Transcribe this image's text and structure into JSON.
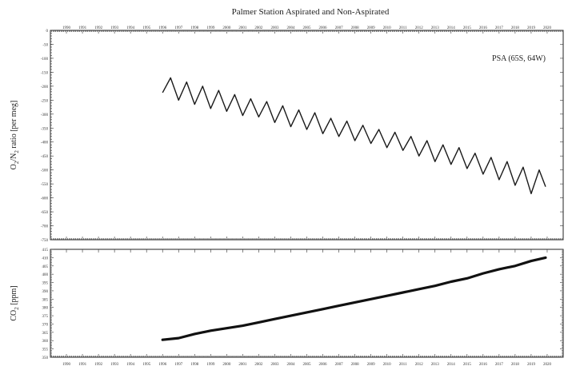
{
  "chart_data": [
    {
      "type": "line",
      "title": "Palmer Station Aspirated and Non-Aspirated",
      "ylabel": "O2/N2 ratio [per meg]",
      "ylabel_main": "O",
      "ylabel_sub1": "2",
      "ylabel_mid": "/N",
      "ylabel_sub2": "2",
      "ylabel_rest": " ratio [per meg]",
      "annotation": "PSA (65S, 64W)",
      "xlim": [
        1989,
        2021
      ],
      "ylim": [
        -750,
        0
      ],
      "x_ticks": [
        1990,
        1991,
        1992,
        1993,
        1994,
        1995,
        1996,
        1997,
        1998,
        1999,
        2000,
        2001,
        2002,
        2003,
        2004,
        2005,
        2006,
        2007,
        2008,
        2009,
        2010,
        2011,
        2012,
        2013,
        2014,
        2015,
        2016,
        2017,
        2018,
        2019,
        2020
      ],
      "y_ticks": [
        0,
        -50,
        -100,
        -150,
        -200,
        -250,
        -300,
        -350,
        -400,
        -450,
        -500,
        -550,
        -600,
        -650,
        -700,
        -750
      ],
      "series": [
        {
          "x": [
            1996.0,
            1996.5,
            1997.0,
            1997.5,
            1998.0,
            1998.5,
            1999.0,
            1999.5,
            2000.0,
            2000.5,
            2001.0,
            2001.5,
            2002.0,
            2002.5,
            2003.0,
            2003.5,
            2004.0,
            2004.5,
            2005.0,
            2005.5,
            2006.0,
            2006.5,
            2007.0,
            2007.5,
            2008.0,
            2008.5,
            2009.0,
            2009.5,
            2010.0,
            2010.5,
            2011.0,
            2011.5,
            2012.0,
            2012.5,
            2013.0,
            2013.5,
            2014.0,
            2014.5,
            2015.0,
            2015.5,
            2016.0,
            2016.5,
            2017.0,
            2017.5,
            2018.0,
            2018.5,
            2019.0,
            2019.5,
            2019.9
          ],
          "y": [
            -223,
            -170,
            -250,
            -185,
            -265,
            -200,
            -280,
            -215,
            -290,
            -230,
            -305,
            -245,
            -310,
            -255,
            -330,
            -270,
            -345,
            -285,
            -355,
            -295,
            -370,
            -315,
            -380,
            -325,
            -395,
            -340,
            -405,
            -355,
            -420,
            -365,
            -430,
            -380,
            -450,
            -395,
            -470,
            -410,
            -480,
            -420,
            -495,
            -440,
            -515,
            -455,
            -535,
            -470,
            -555,
            -490,
            -585,
            -500,
            -560
          ]
        }
      ]
    },
    {
      "type": "line",
      "ylabel": "CO2 [ppm]",
      "ylabel_main": "CO",
      "ylabel_sub1": "2",
      "ylabel_rest": " [ppm]",
      "xlim": [
        1989,
        2021
      ],
      "ylim": [
        350,
        415
      ],
      "x_ticks": [
        1990,
        1991,
        1992,
        1993,
        1994,
        1995,
        1996,
        1997,
        1998,
        1999,
        2000,
        2001,
        2002,
        2003,
        2004,
        2005,
        2006,
        2007,
        2008,
        2009,
        2010,
        2011,
        2012,
        2013,
        2014,
        2015,
        2016,
        2017,
        2018,
        2019,
        2020
      ],
      "series": [
        {
          "x": [
            1996.0,
            1997.0,
            1998.0,
            1999.0,
            2000.0,
            2001.0,
            2002.0,
            2003.0,
            2004.0,
            2005.0,
            2006.0,
            2007.0,
            2008.0,
            2009.0,
            2010.0,
            2011.0,
            2012.0,
            2013.0,
            2014.0,
            2015.0,
            2016.0,
            2017.0,
            2018.0,
            2019.0,
            2019.9
          ],
          "y": [
            360.5,
            361.5,
            364,
            366,
            367.5,
            369,
            371,
            373,
            375,
            377,
            379,
            381,
            383,
            385,
            387,
            389,
            391,
            393,
            395.5,
            397.5,
            400.5,
            403,
            405,
            408,
            410
          ]
        }
      ]
    }
  ]
}
